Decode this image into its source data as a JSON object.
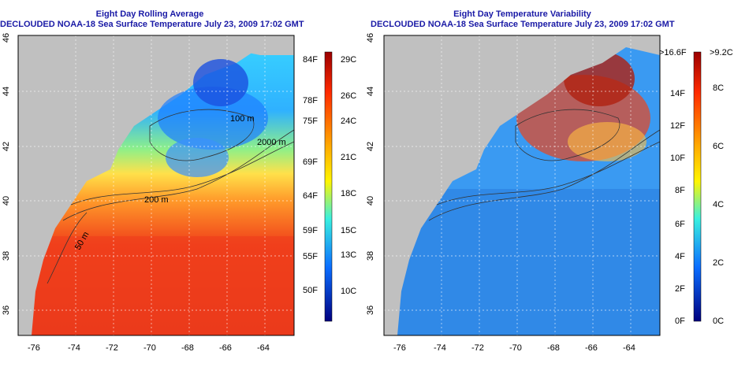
{
  "left_panel": {
    "title_line1": "Eight Day Rolling Average",
    "title_line2": "DECLOUDED NOAA-18 Sea Surface Temperature July 23, 2009 17:02 GMT",
    "colorbar_fahrenheit": [
      "84F",
      "78F",
      "75F",
      "69F",
      "64F",
      "59F",
      "55F",
      "50F"
    ],
    "colorbar_celsius": [
      "29C",
      "26C",
      "24C",
      "21C",
      "18C",
      "15C",
      "13C",
      "10C"
    ]
  },
  "right_panel": {
    "title_line1": "Eight Day Temperature Variability",
    "title_line2": "DECLOUDED NOAA-18 Sea Surface Temperature July 23, 2009 17:02 GMT",
    "colorbar_fahrenheit": [
      ">16.6F",
      "14F",
      "12F",
      "10F",
      "8F",
      "6F",
      "4F",
      "2F",
      "0F"
    ],
    "colorbar_celsius": [
      ">9.2C",
      "8C",
      "6C",
      "4C",
      "2C",
      "0C"
    ]
  },
  "axes": {
    "x_ticks": [
      "-76",
      "-74",
      "-72",
      "-70",
      "-68",
      "-66",
      "-64"
    ],
    "y_ticks": [
      "46",
      "44",
      "42",
      "40",
      "38",
      "36"
    ]
  },
  "contour_labels": [
    "100 m",
    "2000 m",
    "200 m",
    "50 m"
  ],
  "colors": {
    "land": "#c0c0c0",
    "title": "#1a1aa6",
    "ocean_warm": "#f0401a",
    "ocean_mid": "#ffe14a",
    "ocean_cool": "#3aa8ff"
  }
}
